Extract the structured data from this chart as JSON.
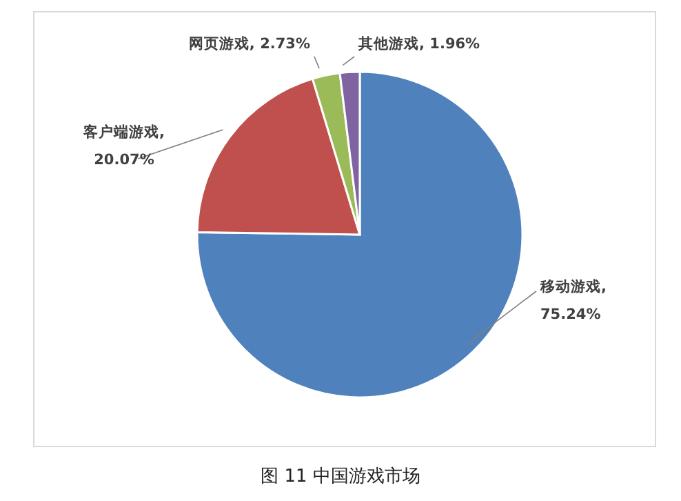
{
  "chart_data": {
    "type": "pie",
    "title": "图 11 中国游戏市场",
    "categories": [
      "移动游戏",
      "客户端游戏",
      "网页游戏",
      "其他游戏"
    ],
    "values": [
      75.24,
      20.07,
      2.73,
      1.96
    ],
    "value_labels": [
      ", 75.24%",
      ", 20.07%",
      ", 2.73%",
      ", 1.96%"
    ],
    "colors": [
      "#4f81bd",
      "#c0504d",
      "#9bbb59",
      "#8064a2"
    ]
  }
}
